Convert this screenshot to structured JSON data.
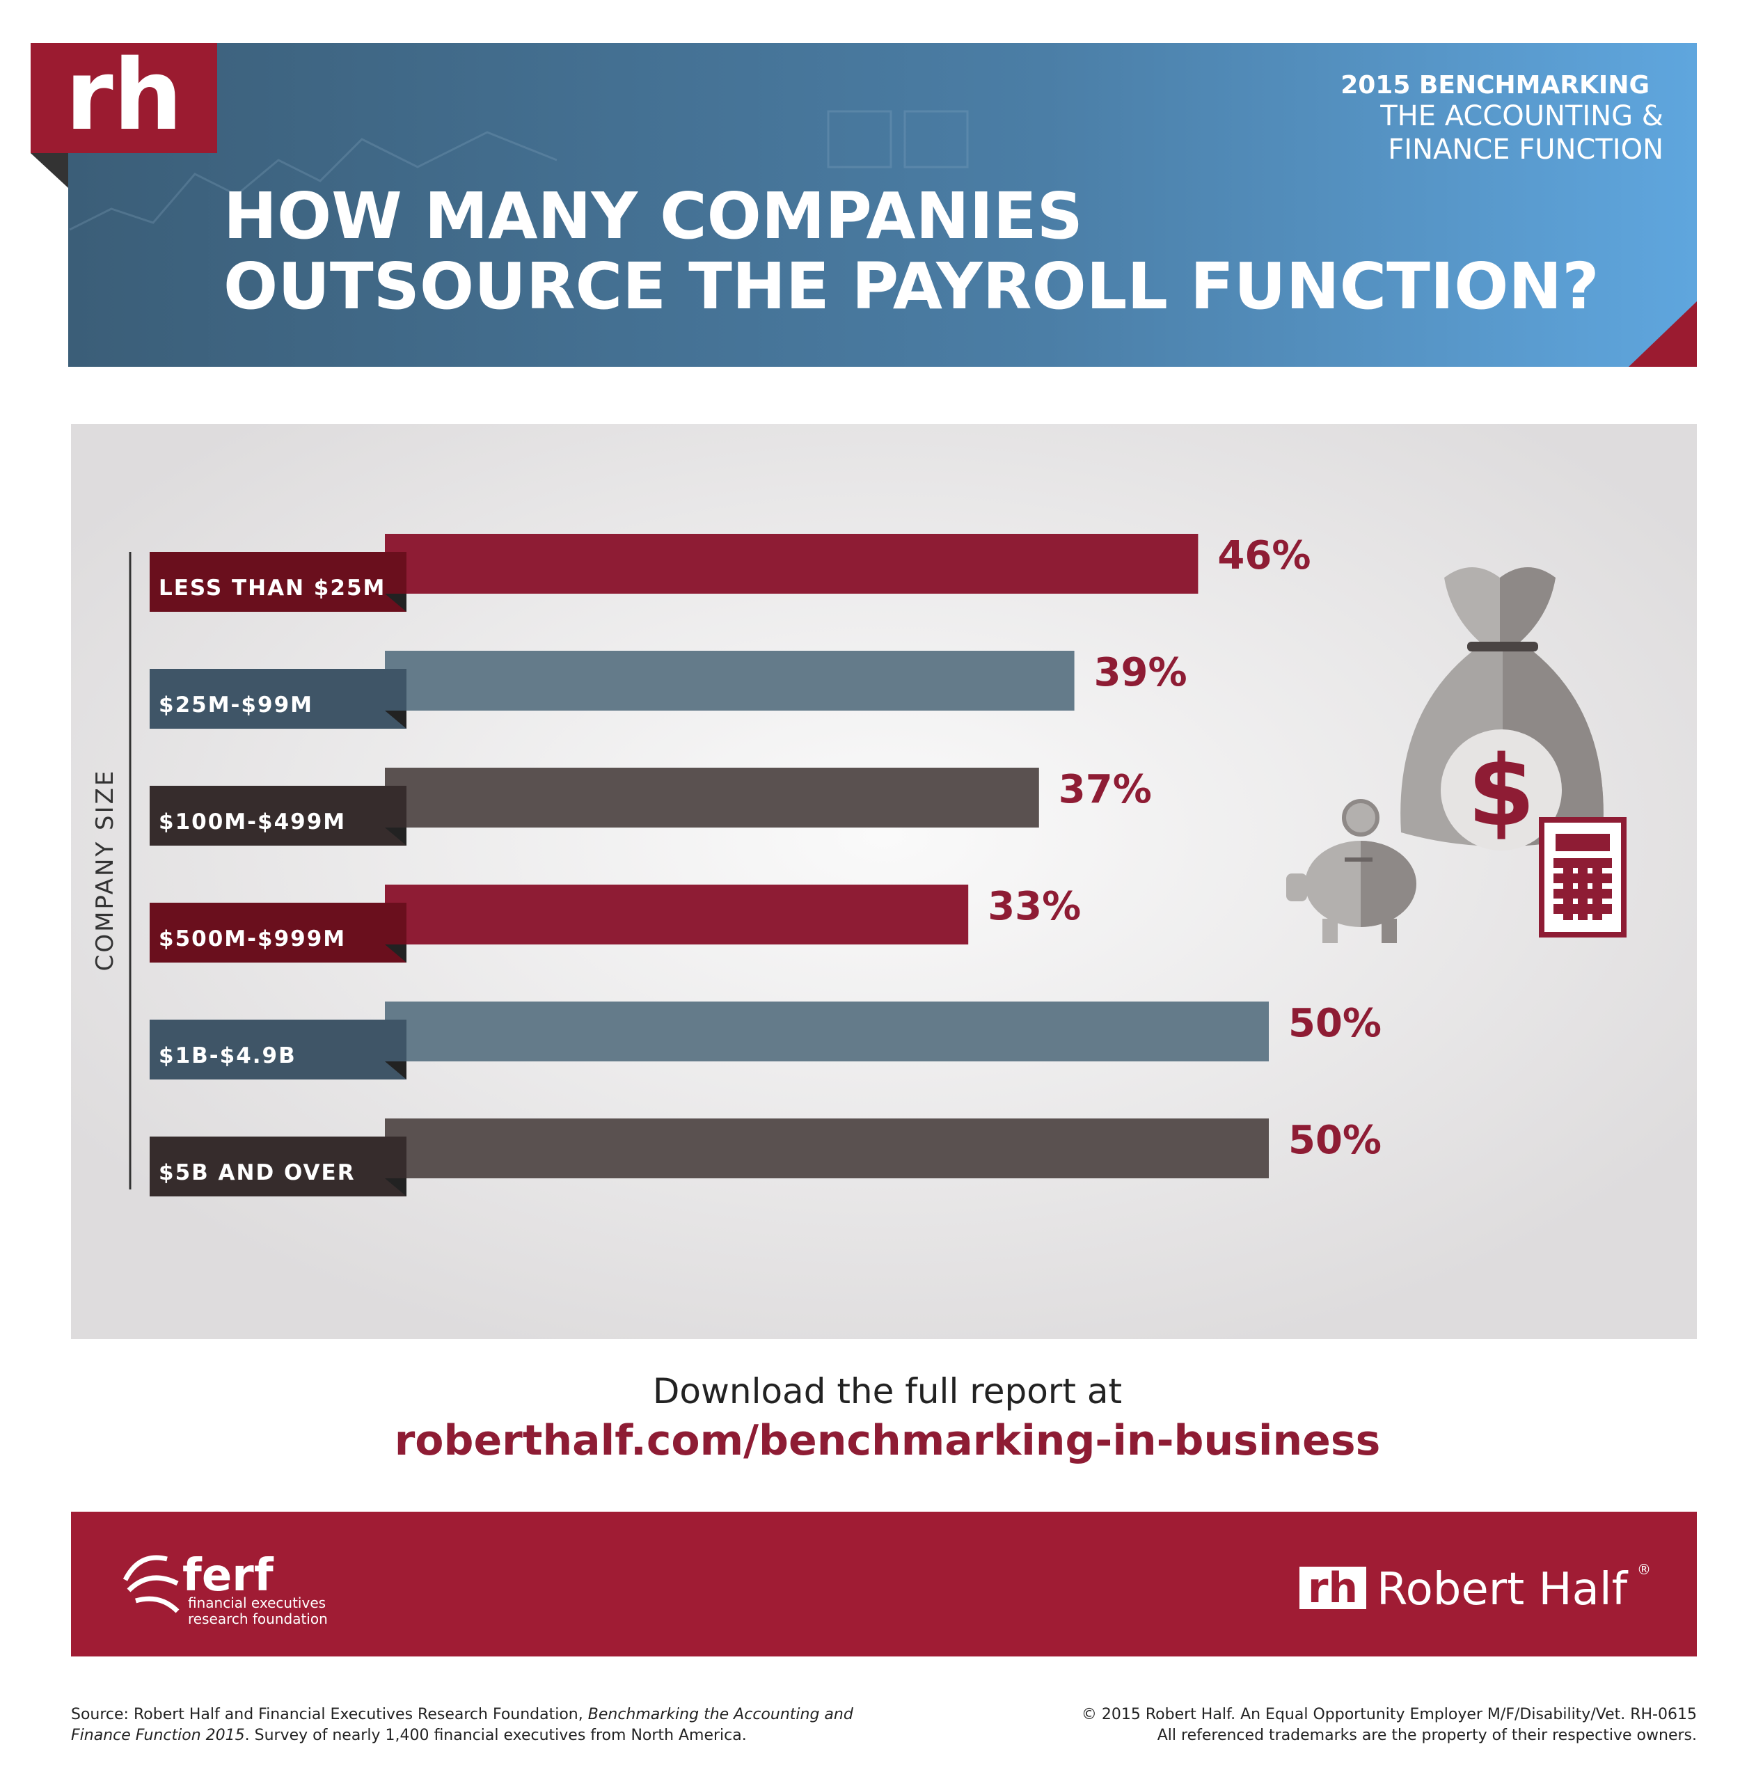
{
  "header": {
    "logo": "rh",
    "kicker": "2015 BENCHMARKING",
    "subtitle_lines": [
      "THE ACCOUNTING &",
      "FINANCE FUNCTION"
    ]
  },
  "chart_data": {
    "type": "bar",
    "orientation": "horizontal",
    "title_lines": [
      "HOW MANY COMPANIES",
      "OUTSOURCE THE PAYROLL FUNCTION?"
    ],
    "y_label": "COMPANY SIZE",
    "categories": [
      "LESS THAN $25M",
      "$25M-$99M",
      "$100M-$499M",
      "$500M-$999M",
      "$1B-$4.9B",
      "$5B AND OVER"
    ],
    "values": [
      46,
      39,
      37,
      33,
      50,
      50
    ],
    "value_labels": [
      "46%",
      "39%",
      "37%",
      "33%",
      "50%",
      "50%"
    ],
    "colors": [
      "#8e1c34",
      "#647b8a",
      "#5a5150",
      "#8e1c34",
      "#647b8a",
      "#5a5150"
    ],
    "tab_colors": [
      "#6a0f1d",
      "#3f5567",
      "#362c2c",
      "#6a0f1d",
      "#3f5567",
      "#362c2c"
    ],
    "value_label_color": "#8e1c34"
  },
  "cta": {
    "text": "Download the full report at",
    "url": "roberthalf.com/benchmarking-in-business"
  },
  "footer": {
    "ferf": {
      "name": "ferf",
      "lines": [
        "financial executives",
        "research foundation"
      ]
    },
    "brand": {
      "logo": "rh",
      "name": "Robert Half",
      "mark": "®"
    }
  },
  "source": {
    "lead": "Source: Robert Half and Financial Executives Research Foundation, ",
    "italic_1": "Benchmarking the Accounting and",
    "italic_2": "Finance Function 2015",
    "tail": ". Survey of nearly 1,400 financial executives from North America."
  },
  "legal": [
    "© 2015 Robert Half. An Equal Opportunity Employer M/F/Disability/Vet. RH-0615",
    "All referenced trademarks are the property of their respective owners."
  ]
}
